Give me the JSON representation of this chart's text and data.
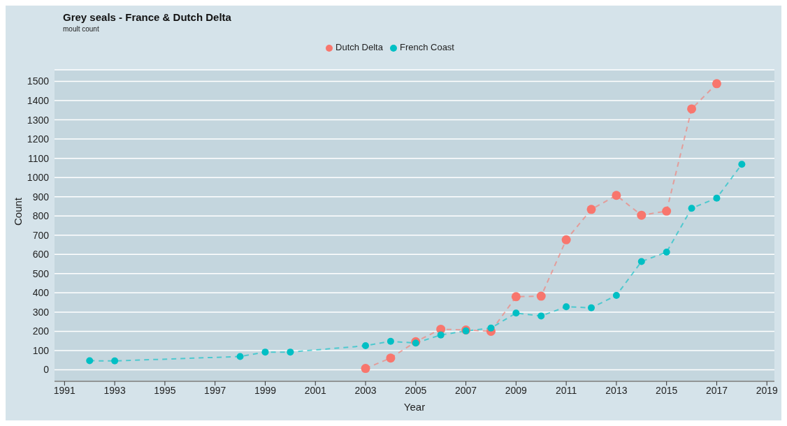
{
  "chart_data": {
    "type": "line",
    "title": "Grey seals - France & Dutch Delta",
    "subtitle": "moult count",
    "xlabel": "Year",
    "ylabel": "Count",
    "xlim": [
      1990.6,
      2019.3
    ],
    "xticks": [
      1991,
      1993,
      1995,
      1997,
      1999,
      2001,
      2003,
      2005,
      2007,
      2009,
      2011,
      2013,
      2015,
      2017,
      2019
    ],
    "ylim": [
      -60,
      1560
    ],
    "yticks": [
      0,
      100,
      200,
      300,
      400,
      500,
      600,
      700,
      800,
      900,
      1000,
      1100,
      1200,
      1300,
      1400,
      1500
    ],
    "grid": "y",
    "legend": "top",
    "marker": "circle",
    "line_style": "dashed",
    "series": [
      {
        "name": "Dutch Delta",
        "color": "#f8766d",
        "x": [
          2003,
          2004,
          2005,
          2006,
          2007,
          2008,
          2009,
          2010,
          2011,
          2012,
          2013,
          2014,
          2015,
          2016,
          2017
        ],
        "values": [
          7,
          61,
          146,
          211,
          207,
          200,
          380,
          383,
          676,
          834,
          907,
          804,
          825,
          1357,
          1488
        ]
      },
      {
        "name": "French Coast",
        "color": "#00bfc4",
        "x": [
          1992,
          1993,
          1998,
          1999,
          2000,
          2003,
          2004,
          2005,
          2006,
          2007,
          2008,
          2009,
          2010,
          2011,
          2012,
          2013,
          2014,
          2015,
          2016,
          2017,
          2018
        ],
        "values": [
          47,
          46,
          69,
          92,
          92,
          125,
          148,
          139,
          181,
          202,
          217,
          295,
          280,
          328,
          322,
          387,
          563,
          612,
          840,
          893,
          1069
        ]
      }
    ]
  }
}
